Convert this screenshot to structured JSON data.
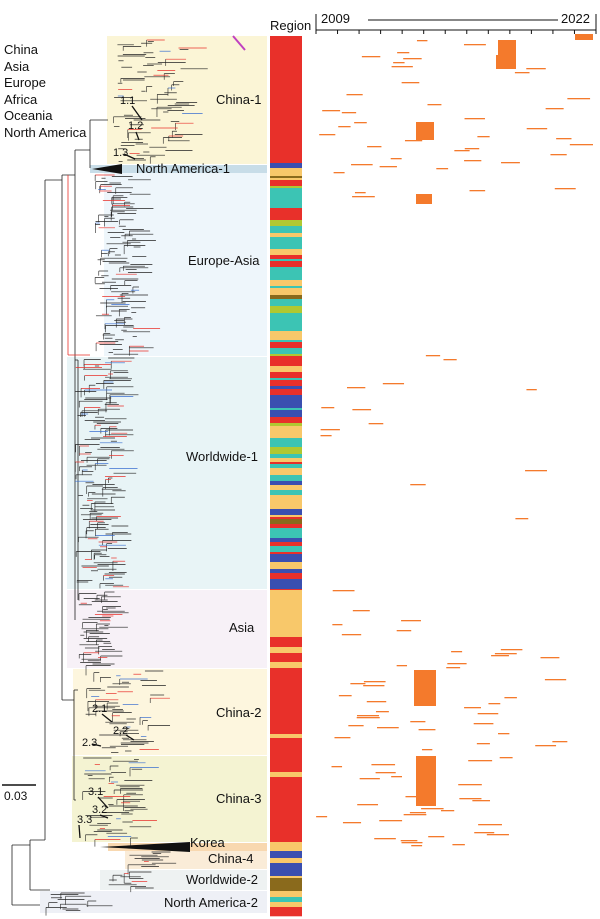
{
  "legend": {
    "regions": [
      "China",
      "Asia",
      "Europe",
      "Africa",
      "Oceania",
      "North America"
    ]
  },
  "region_header": "Region",
  "timeline": {
    "start_label": "2009",
    "end_label": "2022"
  },
  "scale_bar_label": "0.03",
  "colors": {
    "china": "#e8302a",
    "asia": "#f8c86a",
    "europe": "#3cc4b4",
    "africa": "#8a6a1c",
    "oceania": "#b0c832",
    "north_america": "#3a4fb0",
    "timeline_mark": "#f47a2c",
    "tree_branch": "#222222",
    "tip_red": "#e8302a",
    "tip_blue": "#3a6fd0",
    "arrow_magenta": "#c040c0"
  },
  "clades": [
    {
      "name": "China-1",
      "label": "China-1",
      "fill": "#fbf5d6"
    },
    {
      "name": "North America-1",
      "label": "North America-1",
      "fill": "#c8dde8"
    },
    {
      "name": "Europe-Asia",
      "label": "Europe-Asia",
      "fill": "#eef6fb"
    },
    {
      "name": "Worldwide-1",
      "label": "Worldwide-1",
      "fill": "#e8f4f6"
    },
    {
      "name": "Asia",
      "label": "Asia",
      "fill": "#f7f1f7"
    },
    {
      "name": "China-2",
      "label": "China-2",
      "fill": "#fdf6de"
    },
    {
      "name": "China-3",
      "label": "China-3",
      "fill": "#f4f3d2"
    },
    {
      "name": "Korea",
      "label": "Korea",
      "fill": "#f8d8b0"
    },
    {
      "name": "China-4",
      "label": "China-4",
      "fill": "#faecd8"
    },
    {
      "name": "Worldwide-2",
      "label": "Worldwide-2",
      "fill": "#eef2f2"
    },
    {
      "name": "North America-2",
      "label": "North America-2",
      "fill": "#eef0f6"
    }
  ],
  "subclades": [
    "1.1",
    "1.2",
    "1.3",
    "2.1",
    "2.2",
    "2.3",
    "3.1",
    "3.2",
    "3.3"
  ]
}
